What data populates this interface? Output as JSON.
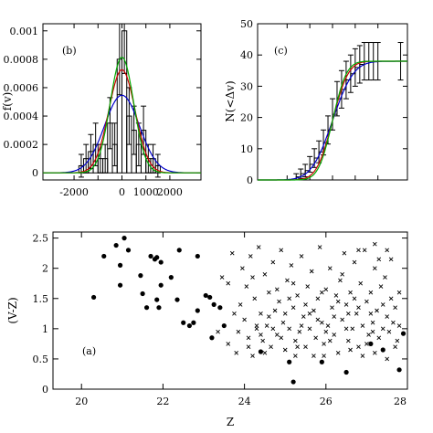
{
  "chart_data": [
    {
      "panel": "b",
      "type": "bar",
      "label": "(b)",
      "ylabel": "f(v)",
      "xlabel": "",
      "xlim": [
        -3300,
        3300
      ],
      "ylim": [
        -5e-05,
        0.00105
      ],
      "xticks": [
        -2000,
        -1000,
        0,
        1000,
        2000
      ],
      "xtick_labels": [
        "-2000",
        "",
        "0",
        "1000",
        "2000"
      ],
      "yticks": [
        0,
        0.0002,
        0.0004,
        0.0006,
        0.0008,
        0.001
      ],
      "ytick_labels": [
        "0",
        "0.0002",
        "0.0004",
        "0.0006",
        "0.0008",
        "0.001"
      ],
      "histogram": {
        "bin_width": 200,
        "bin_centers": [
          -1700,
          -1500,
          -1300,
          -1100,
          -900,
          -700,
          -500,
          -300,
          -100,
          100,
          300,
          500,
          700,
          900,
          1100,
          1300,
          1500
        ],
        "values": [
          5e-05,
          0.0001,
          0.00015,
          0.0002,
          0.0001,
          0.0001,
          0.00035,
          0.0002,
          0.0008,
          0.001,
          0.0004,
          0.0003,
          0.0002,
          0.0003,
          0.0001,
          0.0001,
          5e-05
        ],
        "errors": [
          8e-05,
          0.0001,
          0.00012,
          0.00015,
          0.0001,
          0.0001,
          0.00018,
          0.00015,
          0.00025,
          0.0003,
          0.0002,
          0.00017,
          0.00015,
          0.00017,
          0.0001,
          0.0001,
          8e-05
        ]
      },
      "series": [
        {
          "color": "#0000cc",
          "kind": "gaussian",
          "mean": 0,
          "sigma": 730
        },
        {
          "color": "#cc0000",
          "kind": "gaussian",
          "mean": 0,
          "sigma": 550
        },
        {
          "color": "#00aa00",
          "kind": "gaussian",
          "mean": 0,
          "sigma": 490
        }
      ],
      "grid": false
    },
    {
      "panel": "c",
      "type": "line",
      "label": "(c)",
      "ylabel": "N(<Δv)",
      "xlabel": "",
      "xlim": [
        -3300,
        3300
      ],
      "ylim": [
        0,
        50
      ],
      "yticks": [
        0,
        10,
        20,
        30,
        40,
        50
      ],
      "ytick_labels": [
        "0",
        "10",
        "20",
        "30",
        "40",
        "50"
      ],
      "step_series": {
        "x": [
          -3000,
          -1800,
          -1600,
          -1400,
          -1200,
          -1000,
          -800,
          -600,
          -400,
          -200,
          0,
          200,
          400,
          600,
          800,
          1000,
          1200,
          1400,
          1600,
          1800,
          2000,
          3000
        ],
        "y": [
          0,
          0,
          1,
          2,
          3,
          5,
          7,
          9,
          12,
          16,
          21,
          26,
          29,
          32,
          34,
          36,
          37,
          38,
          38,
          38,
          38,
          38
        ],
        "errors": [
          0,
          0,
          1,
          1.5,
          2,
          2.5,
          3,
          3.5,
          4,
          4.5,
          5,
          5.5,
          6,
          6,
          6,
          6,
          6,
          6,
          6,
          6,
          6,
          6
        ]
      },
      "series": [
        {
          "color": "#0000cc",
          "kind": "cdf",
          "mean": 0,
          "sigma": 730,
          "total": 38
        },
        {
          "color": "#cc0000",
          "kind": "cdf",
          "mean": 0,
          "sigma": 550,
          "total": 38
        },
        {
          "color": "#00aa00",
          "kind": "cdf",
          "mean": 0,
          "sigma": 490,
          "total": 38
        }
      ],
      "grid": false
    },
    {
      "panel": "a",
      "type": "scatter",
      "label": "(a)",
      "xlabel": "Z",
      "ylabel": "(V-Z)",
      "xlim": [
        19.3,
        28
      ],
      "ylim": [
        0,
        2.6
      ],
      "xticks": [
        20,
        22,
        24,
        26,
        28
      ],
      "xtick_labels": [
        "20",
        "22",
        "24",
        "26",
        "28"
      ],
      "yticks": [
        0,
        0.5,
        1,
        1.5,
        2,
        2.5
      ],
      "ytick_labels": [
        "0",
        "0.5",
        "1",
        "1.5",
        "2",
        "2.5"
      ],
      "series": [
        {
          "marker": "filled-circle",
          "points": [
            [
              20.3,
              1.52
            ],
            [
              20.55,
              2.2
            ],
            [
              20.85,
              2.38
            ],
            [
              20.95,
              2.05
            ],
            [
              21.05,
              2.5
            ],
            [
              20.95,
              1.72
            ],
            [
              21.15,
              2.3
            ],
            [
              21.45,
              1.88
            ],
            [
              21.5,
              1.58
            ],
            [
              21.6,
              1.35
            ],
            [
              21.7,
              2.2
            ],
            [
              21.8,
              2.15
            ],
            [
              21.85,
              2.18
            ],
            [
              21.95,
              2.1
            ],
            [
              21.85,
              1.48
            ],
            [
              21.9,
              1.35
            ],
            [
              21.95,
              1.72
            ],
            [
              22.2,
              1.85
            ],
            [
              22.35,
              1.48
            ],
            [
              22.4,
              2.3
            ],
            [
              22.5,
              1.1
            ],
            [
              22.65,
              1.05
            ],
            [
              22.75,
              1.1
            ],
            [
              22.85,
              1.3
            ],
            [
              22.85,
              2.2
            ],
            [
              23.05,
              1.55
            ],
            [
              23.15,
              1.52
            ],
            [
              23.25,
              1.4
            ],
            [
              23.4,
              1.35
            ],
            [
              23.5,
              1.05
            ],
            [
              23.2,
              0.85
            ],
            [
              24.4,
              0.62
            ],
            [
              25.2,
              0.12
            ],
            [
              25.1,
              0.45
            ],
            [
              25.9,
              0.45
            ],
            [
              26.5,
              0.28
            ],
            [
              27.1,
              0.75
            ],
            [
              27.4,
              0.65
            ],
            [
              27.8,
              0.32
            ],
            [
              27.9,
              0.92
            ]
          ]
        },
        {
          "marker": "cross",
          "points": [
            [
              23.35,
              0.95
            ],
            [
              23.45,
              1.85
            ],
            [
              23.6,
              0.75
            ],
            [
              23.6,
              1.75
            ],
            [
              23.7,
              2.25
            ],
            [
              23.75,
              1.25
            ],
            [
              23.8,
              0.6
            ],
            [
              23.85,
              0.95
            ],
            [
              23.95,
              2.0
            ],
            [
              24.0,
              1.15
            ],
            [
              24.05,
              1.7
            ],
            [
              24.1,
              0.85
            ],
            [
              24.15,
              2.2
            ],
            [
              24.2,
              0.55
            ],
            [
              24.25,
              1.5
            ],
            [
              24.3,
              1.0
            ],
            [
              24.35,
              2.35
            ],
            [
              24.4,
              1.25
            ],
            [
              24.45,
              0.8
            ],
            [
              24.5,
              1.9
            ],
            [
              24.55,
              1.05
            ],
            [
              24.6,
              1.6
            ],
            [
              24.65,
              0.7
            ],
            [
              24.7,
              2.1
            ],
            [
              24.75,
              1.3
            ],
            [
              24.8,
              0.9
            ],
            [
              24.85,
              1.45
            ],
            [
              24.9,
              2.3
            ],
            [
              24.95,
              1.1
            ],
            [
              25.0,
              0.65
            ],
            [
              25.05,
              1.8
            ],
            [
              25.1,
              1.0
            ],
            [
              25.15,
              2.05
            ],
            [
              25.2,
              1.35
            ],
            [
              25.25,
              0.8
            ],
            [
              25.3,
              1.55
            ],
            [
              25.35,
              0.95
            ],
            [
              25.4,
              2.2
            ],
            [
              25.45,
              1.2
            ],
            [
              25.5,
              0.7
            ],
            [
              25.55,
              1.7
            ],
            [
              25.6,
              1.0
            ],
            [
              25.65,
              1.95
            ],
            [
              25.7,
              1.3
            ],
            [
              25.75,
              0.85
            ],
            [
              25.8,
              1.5
            ],
            [
              25.85,
              2.35
            ],
            [
              25.9,
              1.1
            ],
            [
              25.95,
              0.75
            ],
            [
              26.0,
              1.65
            ],
            [
              26.05,
              1.05
            ],
            [
              26.1,
              2.0
            ],
            [
              26.15,
              1.35
            ],
            [
              26.2,
              0.9
            ],
            [
              26.25,
              1.55
            ],
            [
              26.3,
              0.6
            ],
            [
              26.35,
              1.8
            ],
            [
              26.4,
              1.15
            ],
            [
              26.45,
              2.25
            ],
            [
              26.5,
              1.4
            ],
            [
              26.55,
              0.8
            ],
            [
              26.6,
              1.6
            ],
            [
              26.65,
              1.0
            ],
            [
              26.7,
              2.1
            ],
            [
              26.75,
              1.25
            ],
            [
              26.8,
              0.7
            ],
            [
              26.85,
              1.75
            ],
            [
              26.9,
              1.05
            ],
            [
              26.95,
              2.3
            ],
            [
              27.0,
              1.45
            ],
            [
              27.05,
              0.9
            ],
            [
              27.1,
              1.6
            ],
            [
              27.15,
              1.1
            ],
            [
              27.2,
              2.0
            ],
            [
              27.25,
              1.3
            ],
            [
              27.3,
              0.85
            ],
            [
              27.35,
              1.7
            ],
            [
              27.4,
              1.0
            ],
            [
              27.45,
              1.85
            ],
            [
              27.5,
              1.2
            ],
            [
              27.55,
              0.95
            ],
            [
              27.6,
              1.5
            ],
            [
              27.65,
              1.1
            ],
            [
              27.7,
              1.35
            ],
            [
              27.75,
              0.8
            ],
            [
              27.8,
              1.05
            ],
            [
              23.9,
              1.4
            ],
            [
              24.2,
              1.85
            ],
            [
              24.6,
              1.2
            ],
            [
              24.9,
              0.85
            ],
            [
              25.2,
              1.75
            ],
            [
              25.5,
              1.4
            ],
            [
              25.8,
              1.15
            ],
            [
              26.1,
              0.8
            ],
            [
              26.4,
              1.9
            ],
            [
              26.7,
              1.5
            ],
            [
              27.0,
              0.75
            ],
            [
              27.3,
              2.15
            ],
            [
              24.4,
              0.9
            ],
            [
              24.7,
              1.0
            ],
            [
              25.0,
              1.25
            ],
            [
              25.3,
              0.7
            ],
            [
              25.6,
              1.25
            ],
            [
              25.9,
              1.6
            ],
            [
              26.2,
              1.2
            ],
            [
              26.5,
              1.0
            ],
            [
              26.8,
              1.35
            ],
            [
              27.1,
              1.25
            ],
            [
              27.4,
              1.4
            ],
            [
              27.7,
              0.7
            ],
            [
              24.1,
              0.7
            ],
            [
              24.8,
              1.65
            ],
            [
              25.4,
              1.05
            ],
            [
              26.0,
              0.95
            ],
            [
              26.6,
              0.65
            ],
            [
              27.2,
              0.6
            ],
            [
              24.3,
              1.05
            ],
            [
              25.1,
              1.5
            ],
            [
              25.7,
              0.55
            ],
            [
              26.3,
              1.45
            ],
            [
              26.9,
              0.55
            ],
            [
              27.5,
              0.5
            ],
            [
              24.5,
              0.6
            ],
            [
              25.25,
              0.55
            ],
            [
              25.95,
              0.55
            ],
            [
              26.55,
              1.25
            ],
            [
              27.15,
              0.95
            ],
            [
              27.6,
              2.15
            ],
            [
              27.2,
              2.4
            ],
            [
              27.5,
              2.3
            ],
            [
              26.8,
              2.3
            ],
            [
              27.8,
              1.6
            ]
          ]
        }
      ],
      "grid": false
    }
  ]
}
